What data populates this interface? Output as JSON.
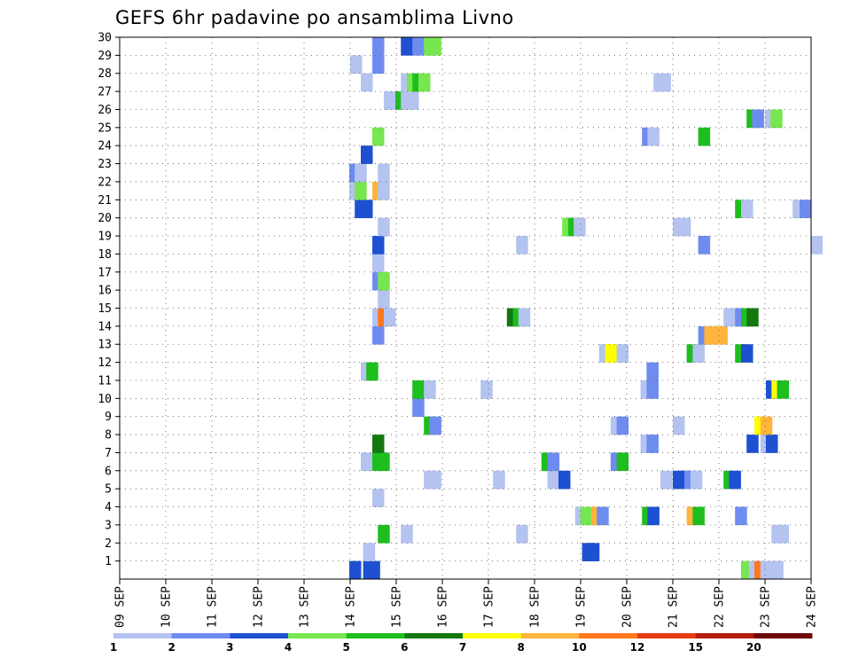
{
  "chart_data": {
    "type": "heatmap",
    "title": "GEFS 6hr padavine po ansamblima Livno",
    "x_tick_labels": [
      "09 SEP",
      "10 SEP",
      "11 SEP",
      "12 SEP",
      "13 SEP",
      "14 SEP",
      "15 SEP",
      "16 SEP",
      "17 SEP",
      "18 SEP",
      "19 SEP",
      "20 SEP",
      "21 SEP",
      "22 SEP",
      "23 SEP",
      "24 SEP"
    ],
    "y_tick_labels": [
      "1",
      "2",
      "3",
      "4",
      "5",
      "6",
      "7",
      "8",
      "9",
      "10",
      "11",
      "12",
      "13",
      "14",
      "15",
      "16",
      "17",
      "18",
      "19",
      "20",
      "21",
      "22",
      "23",
      "24",
      "25",
      "26",
      "27",
      "28",
      "29",
      "30"
    ],
    "x_range_days": [
      0,
      15
    ],
    "y_range_members": [
      0,
      30
    ],
    "grid": "dotted",
    "legend": {
      "position": "bottom",
      "labels": [
        "1",
        "2",
        "3",
        "4",
        "5",
        "6",
        "7",
        "8",
        "10",
        "12",
        "15",
        "20"
      ],
      "colors": [
        "#b4c3f0",
        "#6e8cf0",
        "#1e50d2",
        "#78e650",
        "#1ebe1e",
        "#14780f",
        "#ffff00",
        "#ffb43c",
        "#ff781e",
        "#e63c14",
        "#b41e0a",
        "#6e0a0a"
      ]
    },
    "cells": [
      {
        "day": 4.98,
        "member": 0,
        "level": 2
      },
      {
        "day": 5.28,
        "member": 0,
        "level": 2
      },
      {
        "day": 5.39,
        "member": 0,
        "level": 2
      },
      {
        "day": 13.48,
        "member": 0,
        "level": 3
      },
      {
        "day": 13.65,
        "member": 0,
        "level": 0
      },
      {
        "day": 13.77,
        "member": 0,
        "level": 8
      },
      {
        "day": 13.9,
        "member": 0,
        "level": 0
      },
      {
        "day": 14.02,
        "member": 0,
        "level": 0
      },
      {
        "day": 14.14,
        "member": 0,
        "level": 0
      },
      {
        "day": 5.28,
        "member": 1,
        "level": 0
      },
      {
        "day": 10.03,
        "member": 1,
        "level": 2
      },
      {
        "day": 10.15,
        "member": 1,
        "level": 2
      },
      {
        "day": 5.6,
        "member": 2,
        "level": 4
      },
      {
        "day": 6.1,
        "member": 2,
        "level": 0
      },
      {
        "day": 8.6,
        "member": 2,
        "level": 0
      },
      {
        "day": 14.14,
        "member": 2,
        "level": 0
      },
      {
        "day": 14.26,
        "member": 2,
        "level": 0
      },
      {
        "day": 9.88,
        "member": 3,
        "level": 0
      },
      {
        "day": 9.99,
        "member": 3,
        "level": 3
      },
      {
        "day": 10.11,
        "member": 3,
        "level": 3
      },
      {
        "day": 10.23,
        "member": 3,
        "level": 7
      },
      {
        "day": 10.35,
        "member": 3,
        "level": 1
      },
      {
        "day": 11.33,
        "member": 3,
        "level": 4
      },
      {
        "day": 11.45,
        "member": 3,
        "level": 2
      },
      {
        "day": 12.3,
        "member": 3,
        "level": 7
      },
      {
        "day": 12.43,
        "member": 3,
        "level": 4
      },
      {
        "day": 13.35,
        "member": 3,
        "level": 1
      },
      {
        "day": 5.48,
        "member": 4,
        "level": 0
      },
      {
        "day": 6.6,
        "member": 5,
        "level": 0
      },
      {
        "day": 6.72,
        "member": 5,
        "level": 0
      },
      {
        "day": 8.1,
        "member": 5,
        "level": 0
      },
      {
        "day": 9.28,
        "member": 5,
        "level": 0
      },
      {
        "day": 9.4,
        "member": 5,
        "level": 0
      },
      {
        "day": 9.52,
        "member": 5,
        "level": 2
      },
      {
        "day": 11.73,
        "member": 5,
        "level": 0
      },
      {
        "day": 12.0,
        "member": 5,
        "level": 2
      },
      {
        "day": 12.13,
        "member": 5,
        "level": 2
      },
      {
        "day": 12.25,
        "member": 5,
        "level": 1
      },
      {
        "day": 12.38,
        "member": 5,
        "level": 0
      },
      {
        "day": 13.1,
        "member": 5,
        "level": 4
      },
      {
        "day": 13.22,
        "member": 5,
        "level": 2
      },
      {
        "day": 5.23,
        "member": 6,
        "level": 0
      },
      {
        "day": 5.48,
        "member": 6,
        "level": 4
      },
      {
        "day": 5.6,
        "member": 6,
        "level": 4
      },
      {
        "day": 9.15,
        "member": 6,
        "level": 4
      },
      {
        "day": 9.28,
        "member": 6,
        "level": 1
      },
      {
        "day": 10.65,
        "member": 6,
        "level": 1
      },
      {
        "day": 10.78,
        "member": 6,
        "level": 4
      },
      {
        "day": 5.48,
        "member": 7,
        "level": 5
      },
      {
        "day": 11.3,
        "member": 7,
        "level": 0
      },
      {
        "day": 11.43,
        "member": 7,
        "level": 1
      },
      {
        "day": 13.6,
        "member": 7,
        "level": 2
      },
      {
        "day": 13.9,
        "member": 7,
        "level": 0
      },
      {
        "day": 14.02,
        "member": 7,
        "level": 2
      },
      {
        "day": 6.6,
        "member": 8,
        "level": 4
      },
      {
        "day": 6.72,
        "member": 8,
        "level": 1
      },
      {
        "day": 10.65,
        "member": 8,
        "level": 0
      },
      {
        "day": 10.78,
        "member": 8,
        "level": 1
      },
      {
        "day": 12.0,
        "member": 8,
        "level": 0
      },
      {
        "day": 13.77,
        "member": 8,
        "level": 6
      },
      {
        "day": 13.9,
        "member": 8,
        "level": 7
      },
      {
        "day": 6.35,
        "member": 9,
        "level": 1
      },
      {
        "day": 6.35,
        "member": 10,
        "level": 4
      },
      {
        "day": 6.6,
        "member": 10,
        "level": 0
      },
      {
        "day": 7.83,
        "member": 10,
        "level": 0
      },
      {
        "day": 11.3,
        "member": 10,
        "level": 0
      },
      {
        "day": 11.43,
        "member": 10,
        "level": 1
      },
      {
        "day": 14.02,
        "member": 10,
        "level": 2
      },
      {
        "day": 14.14,
        "member": 10,
        "level": 6
      },
      {
        "day": 14.26,
        "member": 10,
        "level": 4
      },
      {
        "day": 5.23,
        "member": 11,
        "level": 0
      },
      {
        "day": 5.35,
        "member": 11,
        "level": 4
      },
      {
        "day": 11.43,
        "member": 11,
        "level": 1
      },
      {
        "day": 10.4,
        "member": 12,
        "level": 0
      },
      {
        "day": 10.53,
        "member": 12,
        "level": 6
      },
      {
        "day": 10.78,
        "member": 12,
        "level": 0
      },
      {
        "day": 12.3,
        "member": 12,
        "level": 4
      },
      {
        "day": 12.43,
        "member": 12,
        "level": 0
      },
      {
        "day": 13.35,
        "member": 12,
        "level": 4
      },
      {
        "day": 13.48,
        "member": 12,
        "level": 2
      },
      {
        "day": 5.48,
        "member": 13,
        "level": 1
      },
      {
        "day": 12.55,
        "member": 13,
        "level": 1
      },
      {
        "day": 12.68,
        "member": 13,
        "level": 7
      },
      {
        "day": 12.8,
        "member": 13,
        "level": 7
      },
      {
        "day": 12.93,
        "member": 13,
        "level": 7
      },
      {
        "day": 5.48,
        "member": 14,
        "level": 0
      },
      {
        "day": 5.6,
        "member": 14,
        "level": 8
      },
      {
        "day": 5.73,
        "member": 14,
        "level": 0
      },
      {
        "day": 8.4,
        "member": 14,
        "level": 5
      },
      {
        "day": 8.53,
        "member": 14,
        "level": 4
      },
      {
        "day": 8.65,
        "member": 14,
        "level": 0
      },
      {
        "day": 13.1,
        "member": 14,
        "level": 0
      },
      {
        "day": 13.35,
        "member": 14,
        "level": 1
      },
      {
        "day": 13.48,
        "member": 14,
        "level": 4
      },
      {
        "day": 13.6,
        "member": 14,
        "level": 5
      },
      {
        "day": 5.6,
        "member": 15,
        "level": 0
      },
      {
        "day": 5.48,
        "member": 16,
        "level": 1
      },
      {
        "day": 5.6,
        "member": 16,
        "level": 3
      },
      {
        "day": 5.48,
        "member": 17,
        "level": 0
      },
      {
        "day": 5.48,
        "member": 18,
        "level": 2
      },
      {
        "day": 8.6,
        "member": 18,
        "level": 0
      },
      {
        "day": 12.55,
        "member": 18,
        "level": 1
      },
      {
        "day": 14.99,
        "member": 18,
        "level": 0
      },
      {
        "day": 5.6,
        "member": 19,
        "level": 0
      },
      {
        "day": 9.6,
        "member": 19,
        "level": 3
      },
      {
        "day": 9.73,
        "member": 19,
        "level": 4
      },
      {
        "day": 9.85,
        "member": 19,
        "level": 0
      },
      {
        "day": 12.0,
        "member": 19,
        "level": 0
      },
      {
        "day": 12.13,
        "member": 19,
        "level": 0
      },
      {
        "day": 5.1,
        "member": 20,
        "level": 2
      },
      {
        "day": 5.23,
        "member": 20,
        "level": 2
      },
      {
        "day": 13.35,
        "member": 20,
        "level": 4
      },
      {
        "day": 13.48,
        "member": 20,
        "level": 0
      },
      {
        "day": 14.6,
        "member": 20,
        "level": 0
      },
      {
        "day": 14.75,
        "member": 20,
        "level": 1
      },
      {
        "day": 4.98,
        "member": 21,
        "level": 0
      },
      {
        "day": 5.1,
        "member": 21,
        "level": 3
      },
      {
        "day": 5.48,
        "member": 21,
        "level": 7
      },
      {
        "day": 5.6,
        "member": 21,
        "level": 0
      },
      {
        "day": 4.98,
        "member": 22,
        "level": 1
      },
      {
        "day": 5.1,
        "member": 22,
        "level": 0
      },
      {
        "day": 5.6,
        "member": 22,
        "level": 0
      },
      {
        "day": 5.23,
        "member": 23,
        "level": 2
      },
      {
        "day": 5.48,
        "member": 24,
        "level": 3
      },
      {
        "day": 11.33,
        "member": 24,
        "level": 1
      },
      {
        "day": 11.45,
        "member": 24,
        "level": 0
      },
      {
        "day": 12.55,
        "member": 24,
        "level": 4
      },
      {
        "day": 13.6,
        "member": 25,
        "level": 4
      },
      {
        "day": 13.72,
        "member": 25,
        "level": 1
      },
      {
        "day": 14.0,
        "member": 25,
        "level": 0
      },
      {
        "day": 14.12,
        "member": 25,
        "level": 3
      },
      {
        "day": 5.73,
        "member": 26,
        "level": 0
      },
      {
        "day": 5.85,
        "member": 26,
        "level": 0
      },
      {
        "day": 5.98,
        "member": 26,
        "level": 4
      },
      {
        "day": 6.1,
        "member": 26,
        "level": 0
      },
      {
        "day": 6.23,
        "member": 26,
        "level": 0
      },
      {
        "day": 5.23,
        "member": 27,
        "level": 0
      },
      {
        "day": 6.1,
        "member": 27,
        "level": 0
      },
      {
        "day": 6.23,
        "member": 27,
        "level": 3
      },
      {
        "day": 6.35,
        "member": 27,
        "level": 4
      },
      {
        "day": 6.48,
        "member": 27,
        "level": 3
      },
      {
        "day": 11.58,
        "member": 27,
        "level": 0
      },
      {
        "day": 11.7,
        "member": 27,
        "level": 0
      },
      {
        "day": 5.0,
        "member": 28,
        "level": 0
      },
      {
        "day": 5.48,
        "member": 28,
        "level": 1
      },
      {
        "day": 5.48,
        "member": 29,
        "level": 1
      },
      {
        "day": 6.1,
        "member": 29,
        "level": 2
      },
      {
        "day": 6.35,
        "member": 29,
        "level": 1
      },
      {
        "day": 6.6,
        "member": 29,
        "level": 3
      },
      {
        "day": 6.72,
        "member": 29,
        "level": 3
      }
    ]
  }
}
